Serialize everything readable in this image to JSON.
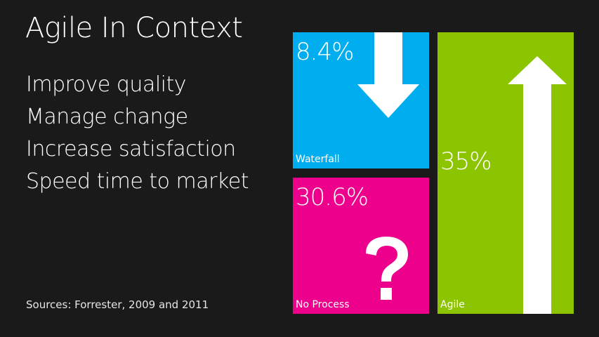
{
  "slide": {
    "title": "Agile In Context",
    "bullets": [
      "Improve quality",
      "Manage change",
      "Increase satisfaction",
      "Speed time to market"
    ],
    "source": "Sources: Forrester, 2009 and 2011"
  },
  "tiles": {
    "waterfall": {
      "percent": "8.4%",
      "label": "Waterfall",
      "color": "#00aeef",
      "icon": "down-arrow-icon"
    },
    "no_process": {
      "percent": "30.6%",
      "label": "No Process",
      "color": "#ec008c",
      "icon": "question-mark-icon"
    },
    "agile": {
      "percent": "35%",
      "label": "Agile",
      "color": "#8dc400",
      "icon": "up-arrow-icon"
    }
  },
  "colors": {
    "background": "#1a1a1a",
    "text": "#ffffff"
  }
}
